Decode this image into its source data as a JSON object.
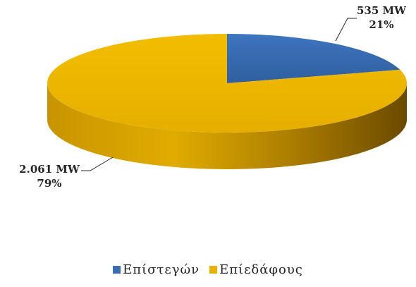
{
  "chart_data": {
    "type": "pie",
    "title": "",
    "slices": [
      {
        "name": "Επίστεγών",
        "value": 535,
        "value_label": "535 MW",
        "percent_label": "21%",
        "color": "#3a6db3"
      },
      {
        "name": "Επίεδάφους",
        "value": 2061,
        "value_label": "2.061 MW",
        "percent_label": "79%",
        "color": "#e8b200"
      }
    ],
    "legend": "bottom",
    "style": "3d"
  }
}
